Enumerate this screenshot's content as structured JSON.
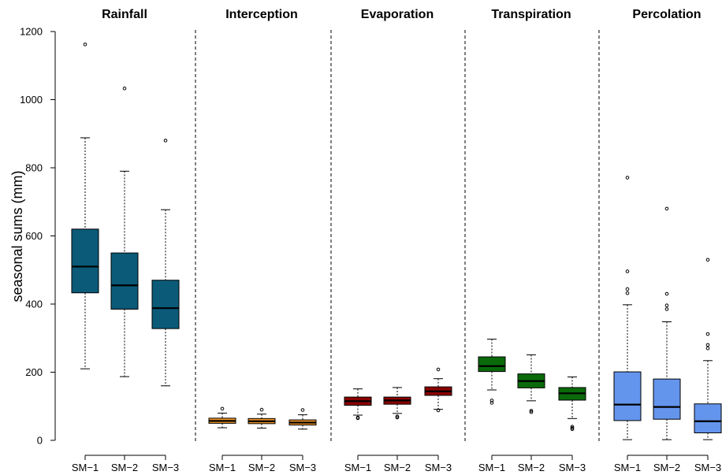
{
  "chart_data": {
    "type": "box",
    "ylabel": "seasonal sums (mm)",
    "ylim": [
      0,
      1200
    ],
    "yticks": [
      0,
      200,
      400,
      600,
      800,
      1000,
      1200
    ],
    "groups": [
      "SM−1",
      "SM−2",
      "SM−3"
    ],
    "panel_separators": "dashed",
    "panels": [
      {
        "title": "Rainfall",
        "color": "#0b5a78",
        "boxes": [
          {
            "group": "SM−1",
            "whisker_low": 210,
            "q1": 433,
            "median": 510,
            "q3": 620,
            "whisker_high": 888,
            "outliers": [
              1162
            ]
          },
          {
            "group": "SM−2",
            "whisker_low": 187,
            "q1": 385,
            "median": 455,
            "q3": 550,
            "whisker_high": 790,
            "outliers": [
              1033
            ]
          },
          {
            "group": "SM−3",
            "whisker_low": 160,
            "q1": 328,
            "median": 388,
            "q3": 470,
            "whisker_high": 677,
            "outliers": [
              880
            ]
          }
        ]
      },
      {
        "title": "Interception",
        "color": "#f09428",
        "boxes": [
          {
            "group": "SM−1",
            "whisker_low": 37,
            "q1": 50,
            "median": 57,
            "q3": 65,
            "whisker_high": 80,
            "outliers": [
              93
            ]
          },
          {
            "group": "SM−2",
            "whisker_low": 36,
            "q1": 49,
            "median": 56,
            "q3": 64,
            "whisker_high": 77,
            "outliers": [
              90
            ]
          },
          {
            "group": "SM−3",
            "whisker_low": 33,
            "q1": 45,
            "median": 52,
            "q3": 60,
            "whisker_high": 75,
            "outliers": [
              89
            ]
          }
        ]
      },
      {
        "title": "Evaporation",
        "color": "#8b0000",
        "boxes": [
          {
            "group": "SM−1",
            "whisker_low": 74,
            "q1": 103,
            "median": 115,
            "q3": 127,
            "whisker_high": 151,
            "outliers": [
              65,
              67
            ]
          },
          {
            "group": "SM−2",
            "whisker_low": 79,
            "q1": 106,
            "median": 117,
            "q3": 127,
            "whisker_high": 155,
            "outliers": [
              67,
              70
            ]
          },
          {
            "group": "SM−3",
            "whisker_low": 91,
            "q1": 132,
            "median": 144,
            "q3": 157,
            "whisker_high": 181,
            "outliers": [
              88,
              208
            ]
          }
        ]
      },
      {
        "title": "Transpiration",
        "color": "#0a6a0a",
        "boxes": [
          {
            "group": "SM−1",
            "whisker_low": 148,
            "q1": 202,
            "median": 218,
            "q3": 245,
            "whisker_high": 297,
            "outliers": [
              110,
              117
            ]
          },
          {
            "group": "SM−2",
            "whisker_low": 116,
            "q1": 154,
            "median": 174,
            "q3": 195,
            "whisker_high": 251,
            "outliers": [
              83,
              87
            ]
          },
          {
            "group": "SM−3",
            "whisker_low": 64,
            "q1": 118,
            "median": 138,
            "q3": 155,
            "whisker_high": 186,
            "outliers": [
              33,
              36,
              40
            ]
          }
        ]
      },
      {
        "title": "Percolation",
        "color": "#6495ed",
        "boxes": [
          {
            "group": "SM−1",
            "whisker_low": 2,
            "q1": 58,
            "median": 105,
            "q3": 201,
            "whisker_high": 398,
            "outliers": [
              432,
              444,
              496,
              771
            ]
          },
          {
            "group": "SM−2",
            "whisker_low": 2,
            "q1": 62,
            "median": 98,
            "q3": 180,
            "whisker_high": 348,
            "outliers": [
              385,
              396,
              430,
              680
            ]
          },
          {
            "group": "SM−3",
            "whisker_low": 2,
            "q1": 22,
            "median": 56,
            "q3": 107,
            "whisker_high": 234,
            "outliers": [
              270,
              280,
              312,
              530
            ]
          }
        ]
      }
    ]
  }
}
